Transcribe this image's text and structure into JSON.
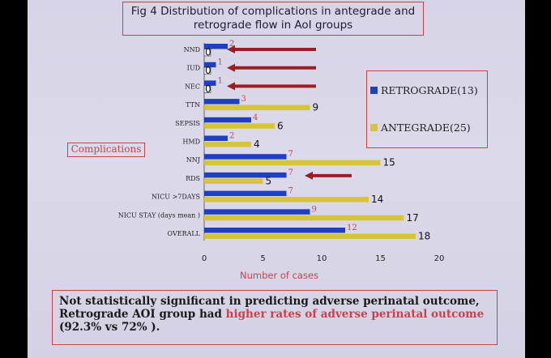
{
  "slide": {
    "title_box": "Fig 4 Distribution of complications in antegrade and retrograde flow in AoI groups",
    "y_axis_label": "Complications",
    "x_axis_label": "Number of cases",
    "note_line1": "Not statistically significant in predicting  adverse perinatal outcome,",
    "note_line2_start": "Retrograde AOI group had ",
    "note_line2_highlight": "higher rates of adverse perinatal outcome",
    "note_line3": "(92.3% vs 72% )."
  },
  "colors": {
    "retrograde": "#1f3fc0",
    "antegrade": "#d8c43a",
    "accent_red": "#c8424c",
    "arrow": "#9a1e24",
    "zero_bar_fill": "#ffffff"
  },
  "chart_data": {
    "type": "bar",
    "orientation": "horizontal",
    "title": "Fig 4 Distribution of complications in antegrade and retrograde flow in AoI groups",
    "xlabel": "Number of cases",
    "ylabel": "Complications",
    "xlim": [
      0,
      20
    ],
    "xticks": [
      0,
      5,
      10,
      15,
      20
    ],
    "grid": false,
    "legend_position": "right",
    "categories": [
      "NND",
      "IUD",
      "NEC",
      "TTN",
      "SEPSIS",
      "HMD",
      "NNJ",
      "RDS",
      "NICU >7DAYS",
      "NICU STAY (days mean )",
      "OVERALL"
    ],
    "series": [
      {
        "name": "RETROGRADE(13)",
        "values": [
          2,
          1,
          1,
          3,
          4,
          2,
          7,
          7,
          7,
          9,
          12
        ]
      },
      {
        "name": "ANTEGRADE(25)",
        "values": [
          0,
          0,
          0,
          9,
          6,
          4,
          15,
          5,
          14,
          17,
          18
        ]
      }
    ],
    "arrow_categories": [
      "NND",
      "IUD",
      "NEC",
      "RDS"
    ]
  }
}
